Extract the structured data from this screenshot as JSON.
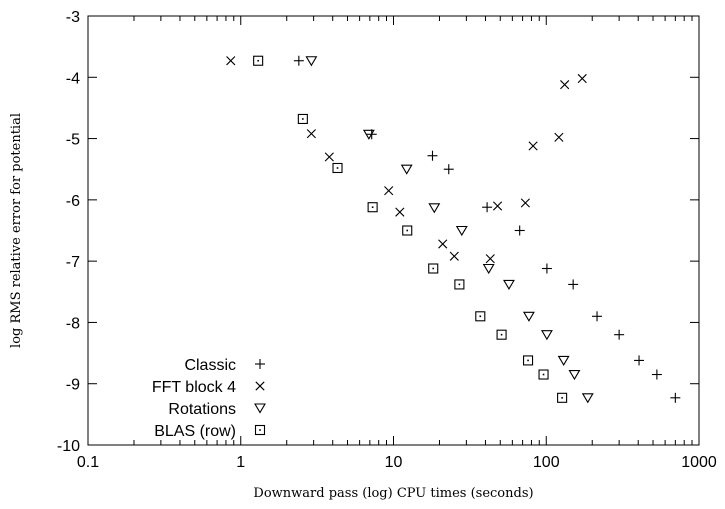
{
  "chart_data": {
    "type": "scatter",
    "xlabel": "Downward pass (log) CPU times (seconds)",
    "ylabel": "log RMS relative error for potential",
    "xscale": "log",
    "xlim": [
      0.1,
      1000
    ],
    "ylim": [
      -10,
      -3
    ],
    "x_ticks": [
      "0.1",
      "1",
      "10",
      "100",
      "1000"
    ],
    "y_ticks": [
      "-3",
      "-4",
      "-5",
      "-6",
      "-7",
      "-8",
      "-9",
      "-10"
    ],
    "grid": false,
    "legend_position": "bottom-left",
    "series": [
      {
        "name": "Classic",
        "marker": "plus",
        "points": [
          [
            2.4,
            -3.73
          ],
          [
            7.2,
            -4.93
          ],
          [
            18,
            -5.28
          ],
          [
            23,
            -5.5
          ],
          [
            41,
            -6.12
          ],
          [
            67,
            -6.5
          ],
          [
            101,
            -7.12
          ],
          [
            150,
            -7.38
          ],
          [
            215,
            -7.9
          ],
          [
            300,
            -8.2
          ],
          [
            405,
            -8.62
          ],
          [
            530,
            -8.85
          ],
          [
            700,
            -9.23
          ]
        ]
      },
      {
        "name": "FFT block 4",
        "marker": "cross",
        "points": [
          [
            0.86,
            -3.73
          ],
          [
            2.9,
            -4.92
          ],
          [
            3.8,
            -5.3
          ],
          [
            9.3,
            -5.85
          ],
          [
            11,
            -6.2
          ],
          [
            21,
            -6.72
          ],
          [
            25,
            -6.92
          ],
          [
            43,
            -6.96
          ],
          [
            48,
            -6.1
          ],
          [
            73,
            -6.05
          ],
          [
            82,
            -5.12
          ],
          [
            121,
            -4.98
          ],
          [
            132,
            -4.12
          ],
          [
            172,
            -4.02
          ]
        ]
      },
      {
        "name": "Rotations",
        "marker": "triangle",
        "points": [
          [
            2.9,
            -3.73
          ],
          [
            6.9,
            -4.93
          ],
          [
            12.2,
            -5.5
          ],
          [
            18.5,
            -6.13
          ],
          [
            28,
            -6.5
          ],
          [
            42,
            -7.12
          ],
          [
            57,
            -7.38
          ],
          [
            77,
            -7.9
          ],
          [
            101,
            -8.2
          ],
          [
            130,
            -8.62
          ],
          [
            153,
            -8.85
          ],
          [
            187,
            -9.23
          ]
        ]
      },
      {
        "name": "BLAS (row)",
        "marker": "square",
        "points": [
          [
            1.3,
            -3.73
          ],
          [
            2.55,
            -4.68
          ],
          [
            4.3,
            -5.48
          ],
          [
            7.3,
            -6.12
          ],
          [
            12.3,
            -6.5
          ],
          [
            18.2,
            -7.12
          ],
          [
            27,
            -7.38
          ],
          [
            37,
            -7.9
          ],
          [
            51,
            -8.2
          ],
          [
            76,
            -8.62
          ],
          [
            96,
            -8.85
          ],
          [
            127,
            -9.23
          ]
        ]
      }
    ]
  }
}
